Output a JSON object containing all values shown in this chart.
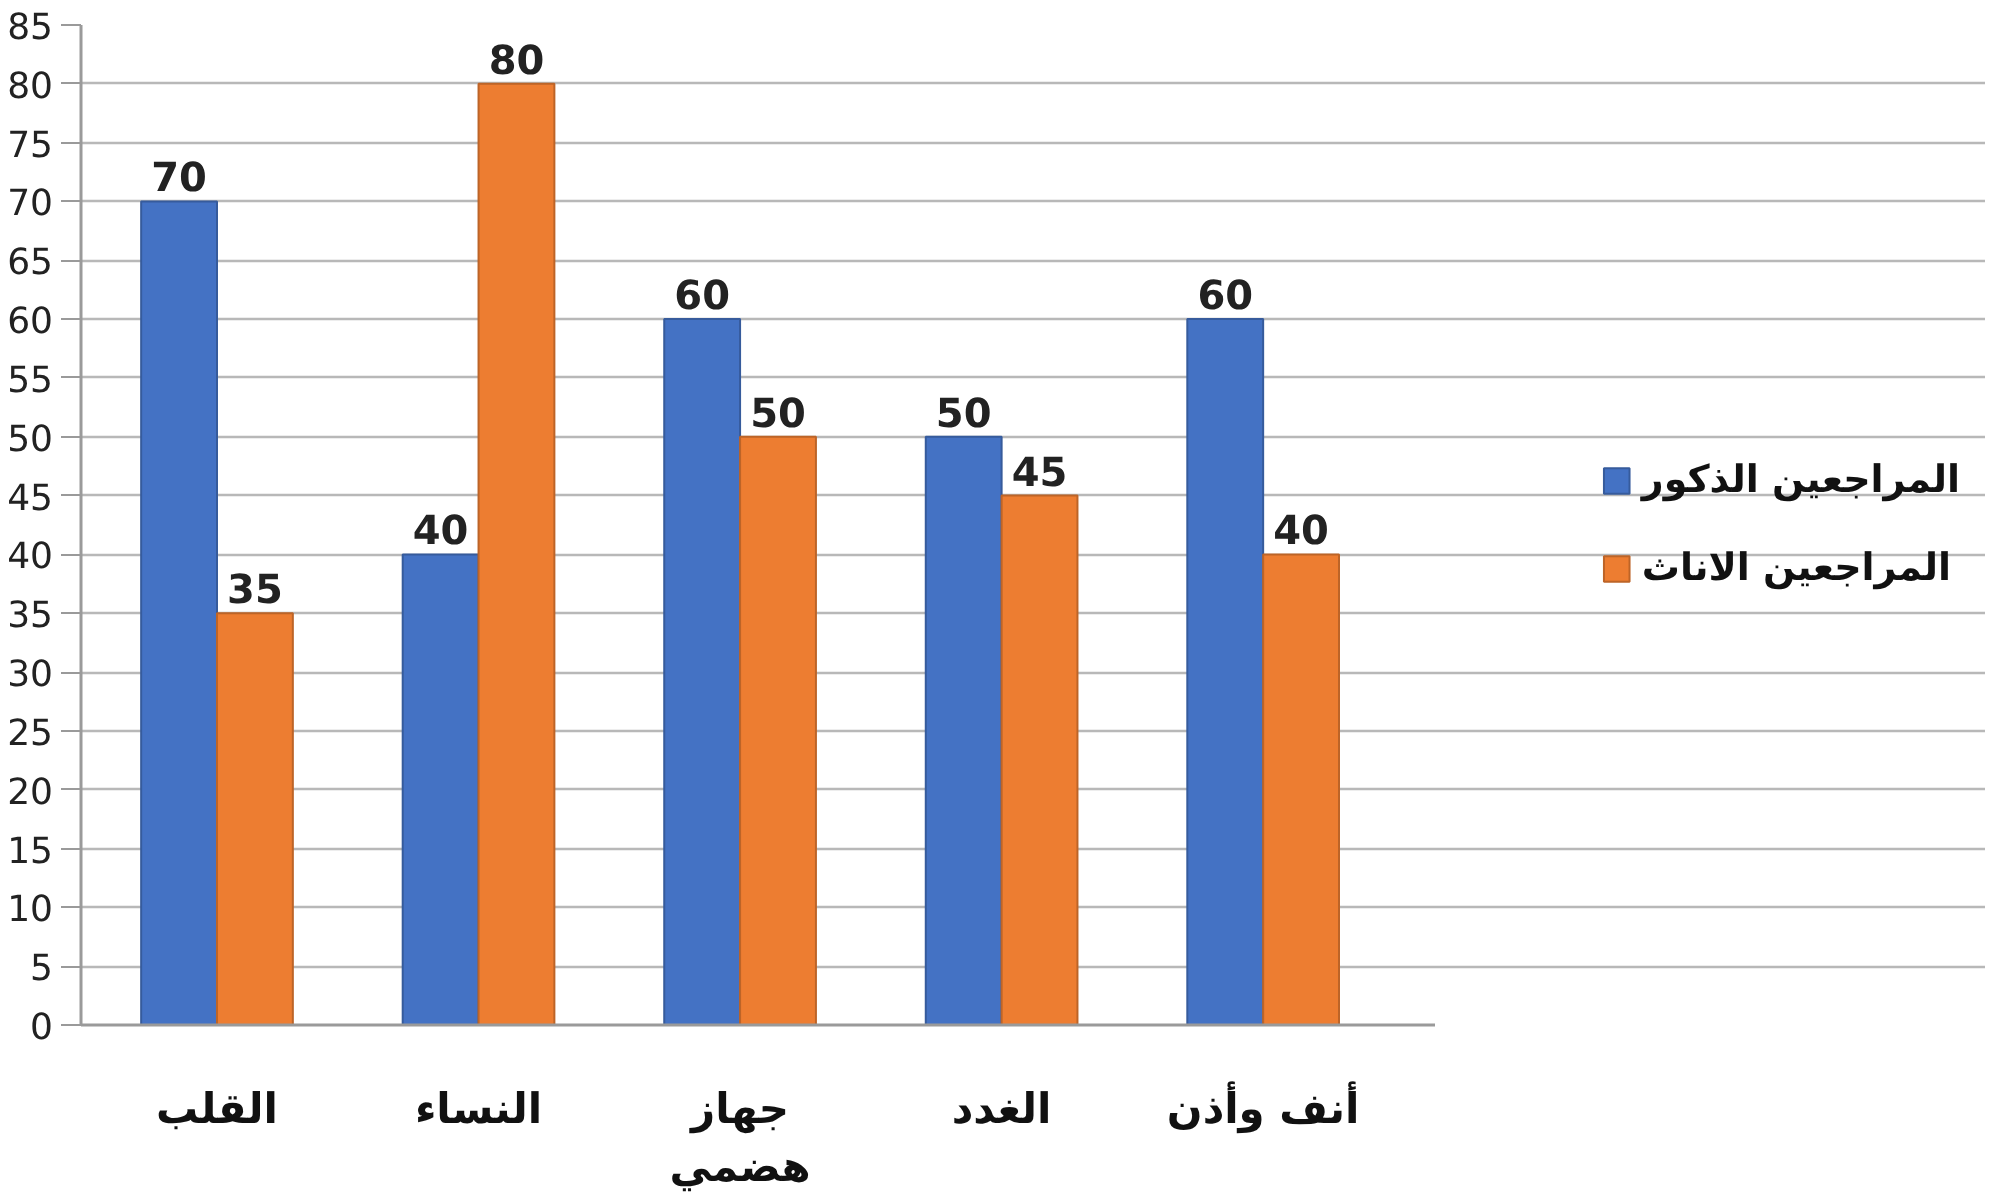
{
  "chart_data": {
    "type": "bar",
    "categories": [
      "القلب",
      "النساء",
      "جهاز هضمي",
      "الغدد",
      "أنف وأذن"
    ],
    "series": [
      {
        "name": "المراجعين الذكور",
        "color": "#4472c4",
        "values": [
          70,
          40,
          60,
          50,
          60
        ]
      },
      {
        "name": "المراجعين الاناث",
        "color": "#ed7d31",
        "values": [
          35,
          80,
          50,
          45,
          40
        ]
      }
    ],
    "ylim": [
      0,
      85
    ],
    "yticks": [
      0,
      5,
      10,
      15,
      20,
      25,
      30,
      35,
      40,
      45,
      50,
      55,
      60,
      65,
      70,
      75,
      80,
      85
    ],
    "grid": "y",
    "legend": "right",
    "data_labels": true
  }
}
